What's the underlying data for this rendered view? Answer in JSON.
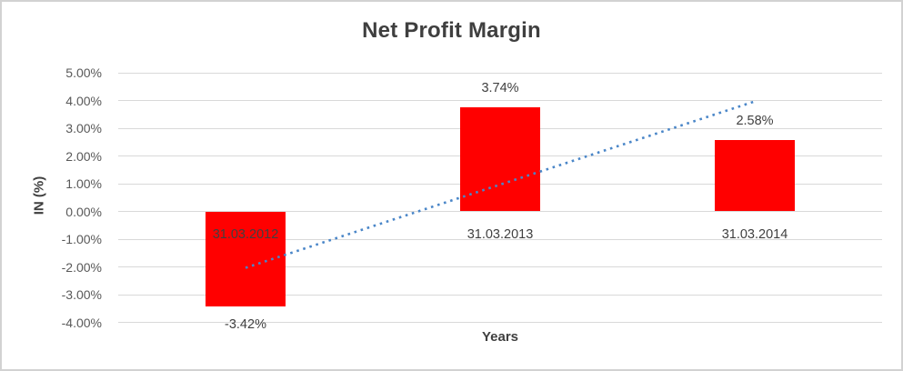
{
  "chart_data": {
    "type": "bar",
    "title": "Net Profit Margin",
    "xlabel": "Years",
    "ylabel": "IN (%)",
    "categories": [
      "31.03.2012",
      "31.03.2013",
      "31.03.2014"
    ],
    "values": [
      -3.42,
      3.74,
      2.58
    ],
    "data_labels": [
      "-3.42%",
      "3.74%",
      "2.58%"
    ],
    "ytick_labels": [
      "5.00%",
      "4.00%",
      "3.00%",
      "2.00%",
      "1.00%",
      "0.00%",
      "-1.00%",
      "-2.00%",
      "-3.00%",
      "-4.00%"
    ],
    "ylim": [
      -4,
      5
    ],
    "ytick_step": 1,
    "grid": true,
    "legend": "none",
    "bar_color": "#ff0000",
    "gridline_color": "#d9d9d9",
    "label_color": "#404040",
    "tick_color": "#595959",
    "trendline": {
      "type": "linear",
      "style": "dotted",
      "color": "#4a86c8"
    }
  }
}
